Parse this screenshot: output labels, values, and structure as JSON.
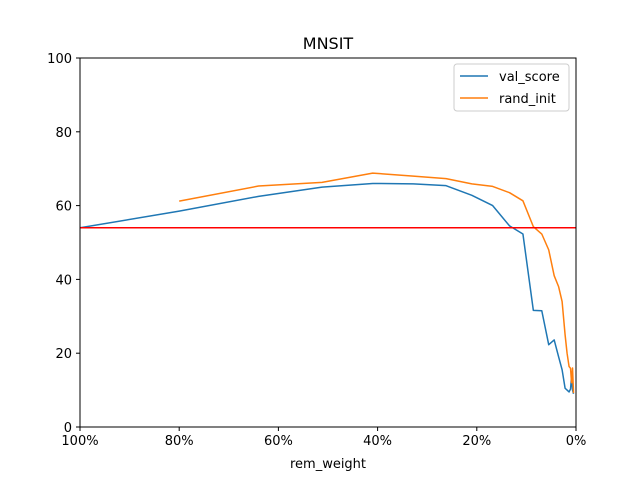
{
  "chart_data": {
    "type": "line",
    "title": "MNSIT",
    "xlabel": "rem_weight",
    "ylabel": "",
    "x_axis_reversed": true,
    "xlim": [
      100,
      0
    ],
    "ylim": [
      0,
      100
    ],
    "x_ticks": [
      100,
      80,
      60,
      40,
      20,
      0
    ],
    "x_tick_labels": [
      "100%",
      "80%",
      "60%",
      "40%",
      "20%",
      "0%"
    ],
    "y_ticks": [
      0,
      20,
      40,
      60,
      80,
      100
    ],
    "y_tick_labels": [
      "0",
      "20",
      "40",
      "60",
      "80",
      "100"
    ],
    "grid": false,
    "legend_position": "top-right",
    "series": [
      {
        "name": "val_score",
        "color": "#1f77b4",
        "x": [
          100,
          80,
          64,
          51.2,
          41,
          32.8,
          26.2,
          21,
          16.8,
          13.4,
          10.7,
          8.6,
          6.9,
          5.5,
          4.4,
          3.5,
          2.8,
          2.2,
          1.8,
          1.4,
          1.1,
          0.9,
          0.7,
          0.5
        ],
        "y": [
          54,
          58.5,
          62.5,
          65,
          66,
          65.9,
          65.4,
          62.8,
          60,
          54.5,
          52.3,
          31.6,
          31.5,
          22.3,
          23.6,
          19,
          15.5,
          10.5,
          10,
          9.5,
          10.3,
          13.7,
          10,
          9
        ]
      },
      {
        "name": "rand_init",
        "color": "#ff7f0e",
        "x": [
          80,
          64,
          51.2,
          41,
          32.8,
          26.2,
          21,
          16.8,
          13.4,
          10.7,
          8.6,
          6.9,
          5.5,
          4.4,
          3.5,
          2.8,
          2.2,
          1.8,
          1.4,
          1.1,
          0.9,
          0.7,
          0.5
        ],
        "y": [
          61.2,
          65.3,
          66.3,
          68.8,
          68,
          67.3,
          65.9,
          65.2,
          63.5,
          61.3,
          54.3,
          52.3,
          48,
          41,
          38,
          34,
          25,
          20,
          16.4,
          15.9,
          12,
          16,
          9.2
        ]
      }
    ],
    "reference_line": {
      "y": 54,
      "color": "#ff0000"
    }
  }
}
